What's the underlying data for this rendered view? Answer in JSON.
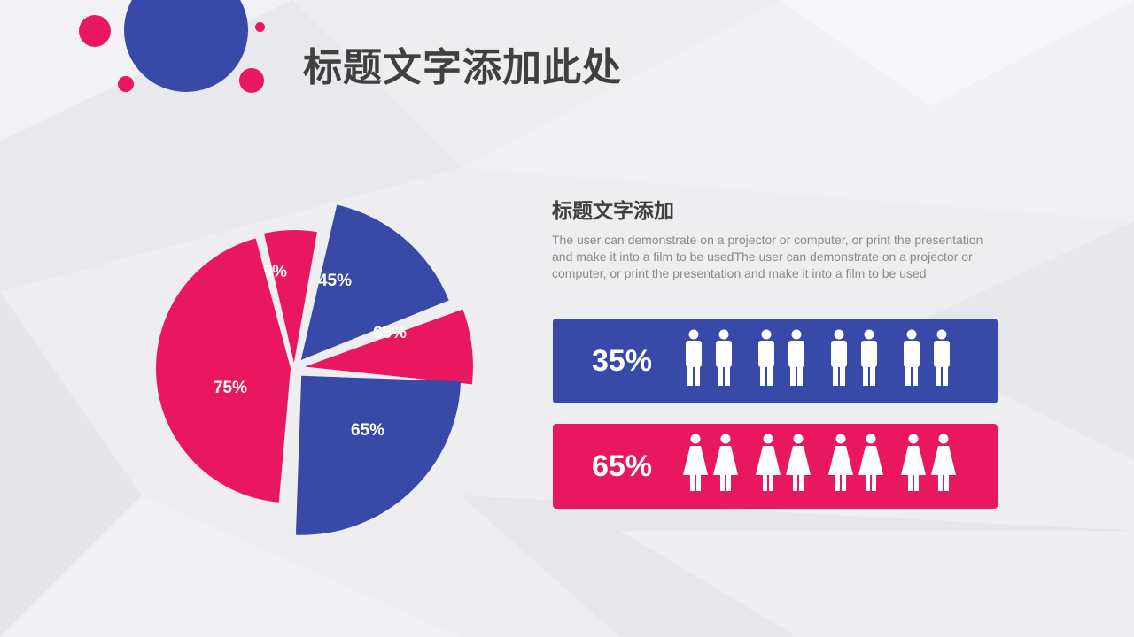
{
  "slide": {
    "title": "标题文字添加此处",
    "subtitle": "标题文字添加",
    "body": "The user can demonstrate on a projector or computer, or print the presentation and make it into a film to be usedThe user can demonstrate on a projector or computer, or print the presentation and make it into a film to be used"
  },
  "colors": {
    "blue": "#3949a7",
    "pink": "#e8175f",
    "title": "#404040",
    "body": "#8a8a8a"
  },
  "chart_data": {
    "type": "pie",
    "slices": [
      {
        "label": "35%",
        "color": "#e8175f"
      },
      {
        "label": "45%",
        "color": "#3949a7"
      },
      {
        "label": "65%",
        "color": "#e8175f"
      },
      {
        "label": "65%",
        "color": "#3949a7"
      },
      {
        "label": "75%",
        "color": "#e8175f"
      }
    ]
  },
  "stats": [
    {
      "label": "35%",
      "icon": "male-person-icon",
      "count": 8,
      "color": "#3949a7"
    },
    {
      "label": "65%",
      "icon": "female-person-icon",
      "count": 8,
      "color": "#e8175f"
    }
  ]
}
